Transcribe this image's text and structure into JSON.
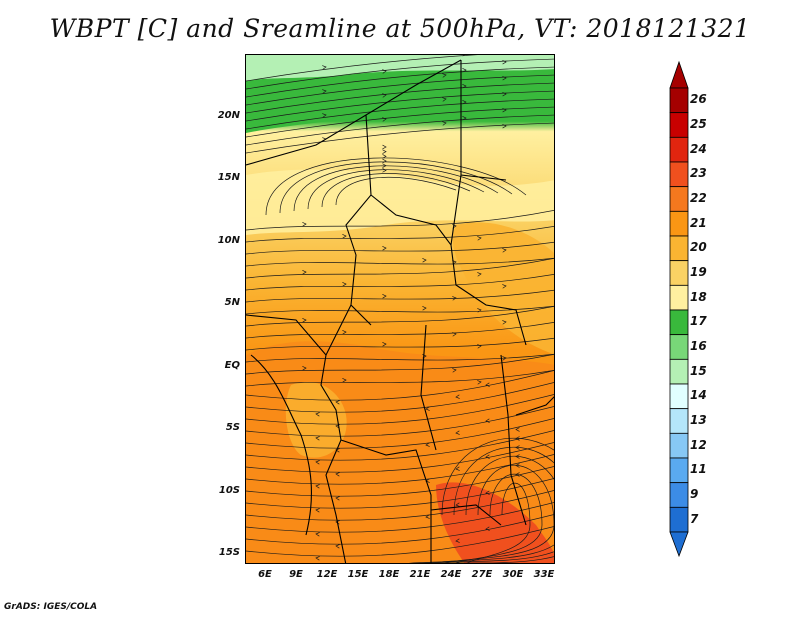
{
  "title": "WBPT [C] and Sreamline at 500hPa, VT: 2018121321",
  "footer": "GrADS: IGES/COLA",
  "map": {
    "lat_labels": [
      "20N",
      "15N",
      "10N",
      "5N",
      "EQ",
      "5S",
      "10S",
      "15S"
    ],
    "lon_labels": [
      "6E",
      "9E",
      "12E",
      "15E",
      "18E",
      "21E",
      "24E",
      "27E",
      "30E",
      "33E"
    ]
  },
  "colorbar": {
    "labels": [
      "26",
      "25",
      "24",
      "23",
      "22",
      "21",
      "20",
      "19",
      "18",
      "17",
      "16",
      "15",
      "14",
      "13",
      "12",
      "11",
      "9",
      "7"
    ],
    "colors": [
      "#a50000",
      "#c80000",
      "#e1250f",
      "#f0501e",
      "#f5781e",
      "#fa9614",
      "#fab432",
      "#fad264",
      "#fff0a0",
      "#39b93c",
      "#78d778",
      "#b4f0b4",
      "#e1ffff",
      "#b4e6fa",
      "#87c8f5",
      "#5aaaf0",
      "#3c8ce6",
      "#1e6ed2"
    ]
  }
}
